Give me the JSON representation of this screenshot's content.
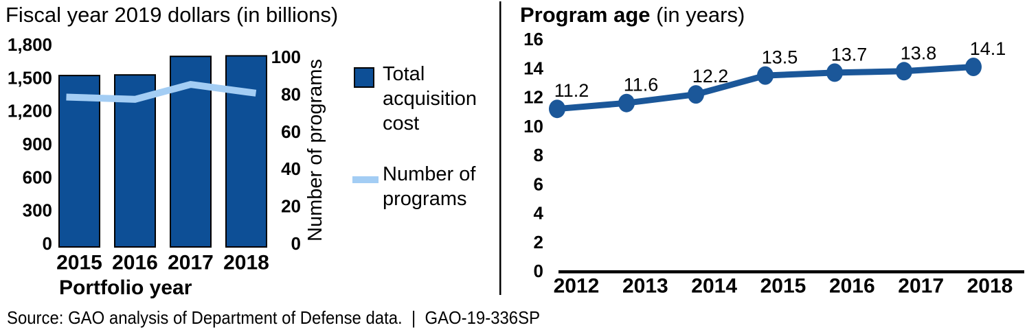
{
  "source_line": "Source: GAO analysis of Department of Defense data.  |  GAO-19-336SP",
  "chart_data": [
    {
      "type": "bar",
      "title": "Fiscal year 2019 dollars (in billions)",
      "xlabel": "Portfolio year",
      "categories": [
        "2015",
        "2016",
        "2017",
        "2018"
      ],
      "series": [
        {
          "name": "Total acquisition cost",
          "kind": "bar",
          "axis": "left",
          "values": [
            1525,
            1530,
            1695,
            1700
          ],
          "color": "#0d4f96"
        },
        {
          "name": "Number of programs",
          "kind": "line",
          "axis": "right",
          "values": [
            79,
            78,
            86,
            82
          ],
          "color": "#a3cdf4"
        }
      ],
      "left_axis": {
        "ticks": [
          "1,800",
          "1,500",
          "1,200",
          "900",
          "600",
          "300",
          "0"
        ],
        "min": 0,
        "max": 1800,
        "grid": false
      },
      "right_axis": {
        "label": "Number of programs",
        "ticks": [
          "100",
          "80",
          "60",
          "40",
          "20",
          "0"
        ],
        "min": 0,
        "max": 100
      },
      "legend": [
        {
          "swatch": "square",
          "lines": [
            "Total",
            "acquisition",
            "cost"
          ]
        },
        {
          "swatch": "line",
          "lines": [
            "Number of",
            "programs"
          ]
        }
      ],
      "legend_position": "right"
    },
    {
      "type": "line",
      "title_bold": "Program age",
      "title_suffix": " (in years)",
      "categories": [
        "2012",
        "2013",
        "2014",
        "2015",
        "2016",
        "2017",
        "2018"
      ],
      "values": [
        11.2,
        11.6,
        12.2,
        13.5,
        13.7,
        13.8,
        14.1
      ],
      "data_labels": [
        "11.2",
        "11.6",
        "12.2",
        "13.5",
        "13.7",
        "13.8",
        "14.1"
      ],
      "yticks": [
        "16",
        "14",
        "12",
        "10",
        "8",
        "6",
        "4",
        "2",
        "0"
      ],
      "ylim": [
        0,
        16
      ],
      "color": "#1b5799",
      "grid": false,
      "marker": "circle"
    }
  ]
}
